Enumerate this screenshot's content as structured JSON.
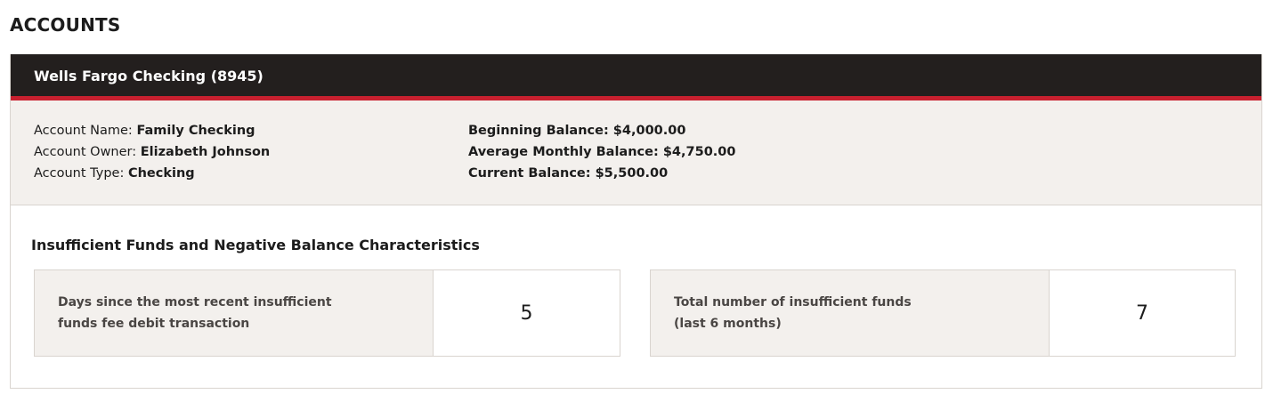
{
  "page_title": "ACCOUNTS",
  "account": {
    "header": "Wells Fargo Checking (8945)",
    "left": [
      {
        "label": "Account Name: ",
        "value": "Family Checking"
      },
      {
        "label": "Account Owner: ",
        "value": "Elizabeth Johnson"
      },
      {
        "label": "Account Type: ",
        "value": "Checking"
      }
    ],
    "right": [
      {
        "label": "Beginning Balance: ",
        "value": "$4,000.00"
      },
      {
        "label": "Average Monthly Balance: ",
        "value": "$4,750.00"
      },
      {
        "label": "Current Balance: ",
        "value": "$5,500.00"
      }
    ],
    "section_title": "Insufficient Funds and Negative Balance Characteristics",
    "metrics": [
      {
        "label": "Days since the most recent insufficient funds fee debit transaction",
        "value": "5"
      },
      {
        "label": "Total number of insufficient funds (last 6 months)",
        "value": "7"
      }
    ]
  },
  "colors": {
    "header_bg": "#231f1e",
    "accent": "#c8202f",
    "panel_bg": "#f3f0ed"
  }
}
